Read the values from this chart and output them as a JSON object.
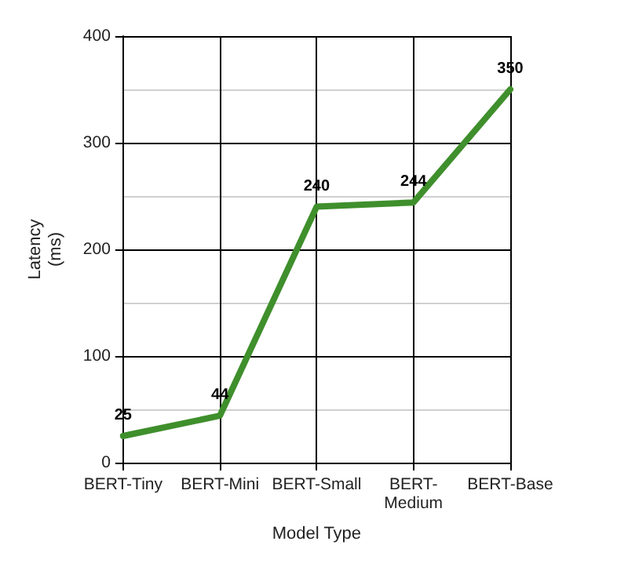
{
  "chart_data": {
    "type": "line",
    "xlabel": "Model Type",
    "ylabel": "Latency\n(ms)",
    "categories": [
      "BERT-Tiny",
      "BERT-Mini",
      "BERT-Small",
      "BERT-Medium",
      "BERT-Base"
    ],
    "values": [
      25,
      44,
      240,
      244,
      350
    ],
    "color": "#3f8f2c",
    "ylim": [
      0,
      400
    ],
    "yticks": [
      0,
      100,
      200,
      300,
      400
    ],
    "grid": true,
    "data_labels": true,
    "marker": "none",
    "line_style": "solid"
  }
}
